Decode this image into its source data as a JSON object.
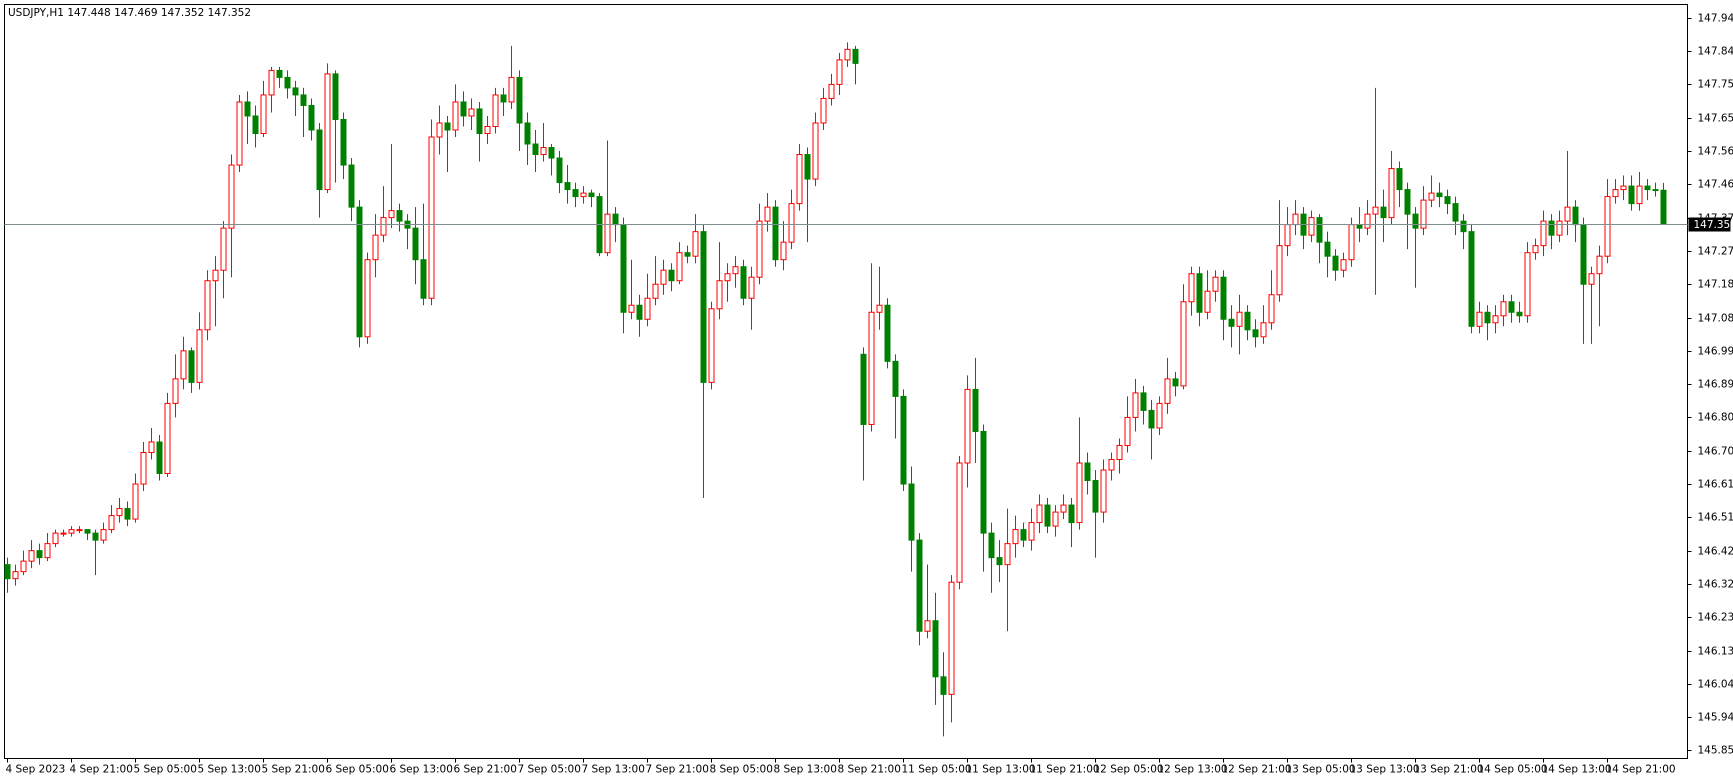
{
  "chart_data": {
    "type": "candlestick",
    "symbol": "USDJPY,H1",
    "up_color": "#ff0000",
    "down_color": "#008000",
    "background": "#ffffff",
    "price_line_color": "#7f8f8f",
    "grid": false,
    "ylim": [
      145.827,
      147.978
    ],
    "yticks": [
      {
        "value": 147.94,
        "label": "147.940"
      },
      147.845,
      {
        "value": 147.75,
        "label": "147.750"
      },
      147.655,
      {
        "value": 147.56,
        "label": "147.560"
      },
      147.465,
      {
        "value": 147.37,
        "label": "147.370"
      },
      147.275,
      {
        "value": 147.18,
        "label": "147.180"
      },
      147.085,
      {
        "value": 146.99,
        "label": "146.990"
      },
      146.895,
      {
        "value": 146.8,
        "label": "146.800"
      },
      146.705,
      {
        "value": 146.61,
        "label": "146.610"
      },
      146.515,
      {
        "value": 146.42,
        "label": "146.420"
      },
      146.325,
      {
        "value": 146.23,
        "label": "146.230"
      },
      146.135,
      {
        "value": 146.04,
        "label": "146.040"
      },
      145.945,
      {
        "value": 145.85,
        "label": "145.850"
      }
    ],
    "categories": [
      "4 Sep 2023",
      null,
      null,
      null,
      null,
      null,
      null,
      null,
      "4 Sep 21:00",
      null,
      null,
      null,
      null,
      null,
      null,
      null,
      "5 Sep 05:00",
      null,
      null,
      null,
      null,
      null,
      null,
      null,
      "5 Sep 13:00",
      null,
      null,
      null,
      null,
      null,
      null,
      null,
      "5 Sep 21:00",
      null,
      null,
      null,
      null,
      null,
      null,
      null,
      "6 Sep 05:00",
      null,
      null,
      null,
      null,
      null,
      null,
      null,
      "6 Sep 13:00",
      null,
      null,
      null,
      null,
      null,
      null,
      null,
      "6 Sep 21:00",
      null,
      null,
      null,
      null,
      null,
      null,
      null,
      "7 Sep 05:00",
      null,
      null,
      null,
      null,
      null,
      null,
      null,
      "7 Sep 13:00",
      null,
      null,
      null,
      null,
      null,
      null,
      null,
      "7 Sep 21:00",
      null,
      null,
      null,
      null,
      null,
      null,
      null,
      "8 Sep 05:00",
      null,
      null,
      null,
      null,
      null,
      null,
      null,
      "8 Sep 13:00",
      null,
      null,
      null,
      null,
      null,
      null,
      null,
      "8 Sep 21:00",
      null,
      null,
      null,
      null,
      null,
      null,
      null,
      "11 Sep 05:00",
      null,
      null,
      null,
      null,
      null,
      null,
      null,
      "11 Sep 13:00",
      null,
      null,
      null,
      null,
      null,
      null,
      null,
      "11 Sep 21:00",
      null,
      null,
      null,
      null,
      null,
      null,
      null,
      "12 Sep 05:00",
      null,
      null,
      null,
      null,
      null,
      null,
      null,
      "12 Sep 13:00",
      null,
      null,
      null,
      null,
      null,
      null,
      null,
      "12 Sep 21:00",
      null,
      null,
      null,
      null,
      null,
      null,
      null,
      "13 Sep 05:00",
      null,
      null,
      null,
      null,
      null,
      null,
      null,
      "13 Sep 13:00",
      null,
      null,
      null,
      null,
      null,
      null,
      null,
      "13 Sep 21:00",
      null,
      null,
      null,
      null,
      null,
      null,
      null,
      "14 Sep 05:00",
      null,
      null,
      null,
      null,
      null,
      null,
      null,
      "14 Sep 13:00",
      null,
      null,
      null,
      null,
      null,
      null,
      null,
      "14 Sep 21:00",
      null,
      null,
      null,
      null,
      null,
      null,
      null
    ],
    "open": [
      146.38,
      146.34,
      146.36,
      146.39,
      146.42,
      146.4,
      146.44,
      146.47,
      146.47,
      146.48,
      146.48,
      146.47,
      146.45,
      146.48,
      146.52,
      146.54,
      146.51,
      146.61,
      146.7,
      146.73,
      146.64,
      146.84,
      146.91,
      146.99,
      146.9,
      147.05,
      147.19,
      147.22,
      147.34,
      147.52,
      147.7,
      147.66,
      147.61,
      147.72,
      147.79,
      147.77,
      147.74,
      147.72,
      147.69,
      147.62,
      147.45,
      147.78,
      147.65,
      147.52,
      147.4,
      147.03,
      147.25,
      147.32,
      147.37,
      147.39,
      147.36,
      147.34,
      147.25,
      147.14,
      147.6,
      147.64,
      147.62,
      147.7,
      147.66,
      147.68,
      147.61,
      147.63,
      147.72,
      147.7,
      147.77,
      147.64,
      147.58,
      147.55,
      147.57,
      147.54,
      147.47,
      147.45,
      147.43,
      147.44,
      147.43,
      147.27,
      147.38,
      147.35,
      147.1,
      147.12,
      147.08,
      147.14,
      147.18,
      147.22,
      147.19,
      147.27,
      147.26,
      147.33,
      146.9,
      147.11,
      147.19,
      147.21,
      147.23,
      147.14,
      147.2,
      147.36,
      147.4,
      147.25,
      147.3,
      147.41,
      147.55,
      147.48,
      147.64,
      147.71,
      147.75,
      147.82,
      147.85,
      146.98,
      146.78,
      147.1,
      147.12,
      146.96,
      146.86,
      146.61,
      146.45,
      146.19,
      146.22,
      146.06,
      146.01,
      146.33,
      146.67,
      146.88,
      146.76,
      146.47,
      146.4,
      146.38,
      146.44,
      146.48,
      146.45,
      146.5,
      146.55,
      146.49,
      146.53,
      146.55,
      146.5,
      146.67,
      146.62,
      146.53,
      146.65,
      146.68,
      146.72,
      146.8,
      146.87,
      146.82,
      146.77,
      146.84,
      146.91,
      146.89,
      147.13,
      147.21,
      147.1,
      147.16,
      147.2,
      147.08,
      147.06,
      147.1,
      147.05,
      147.03,
      147.07,
      147.15,
      147.29,
      147.35,
      147.38,
      147.32,
      147.37,
      147.3,
      147.26,
      147.22,
      147.25,
      147.35,
      147.34,
      147.38,
      147.4,
      147.37,
      147.51,
      147.45,
      147.38,
      147.34,
      147.42,
      147.44,
      147.43,
      147.41,
      147.36,
      147.33,
      147.06,
      147.1,
      147.07,
      147.09,
      147.13,
      147.1,
      147.09,
      147.27,
      147.29,
      147.36,
      147.32,
      147.36,
      147.4,
      147.35,
      147.18,
      147.21,
      147.26,
      147.43,
      147.45,
      147.46,
      147.41,
      147.46,
      147.45,
      147.448
    ],
    "high": [
      146.4,
      146.38,
      146.42,
      146.45,
      146.44,
      146.47,
      146.48,
      146.48,
      146.49,
      146.49,
      146.48,
      146.48,
      146.5,
      146.55,
      146.57,
      146.56,
      146.64,
      146.73,
      146.77,
      146.75,
      146.87,
      146.98,
      147.03,
      147.0,
      147.1,
      147.22,
      147.26,
      147.36,
      147.55,
      147.72,
      147.73,
      147.69,
      147.76,
      147.8,
      147.8,
      147.79,
      147.76,
      147.74,
      147.71,
      147.64,
      147.81,
      147.79,
      147.67,
      147.54,
      147.42,
      147.27,
      147.38,
      147.46,
      147.58,
      147.41,
      147.38,
      147.4,
      147.41,
      147.65,
      147.69,
      147.66,
      147.75,
      147.73,
      147.71,
      147.7,
      147.66,
      147.74,
      147.74,
      147.86,
      147.79,
      147.67,
      147.62,
      147.64,
      147.58,
      147.56,
      147.52,
      147.47,
      147.46,
      147.45,
      147.44,
      147.59,
      147.4,
      147.37,
      147.25,
      147.15,
      147.21,
      147.26,
      147.25,
      147.24,
      147.3,
      147.29,
      147.38,
      147.35,
      147.13,
      147.3,
      147.24,
      147.26,
      147.25,
      147.23,
      147.41,
      147.44,
      147.42,
      147.36,
      147.45,
      147.58,
      147.57,
      147.67,
      147.74,
      147.78,
      147.84,
      147.87,
      147.86,
      147.0,
      147.24,
      147.23,
      147.14,
      146.98,
      146.88,
      146.66,
      146.47,
      146.38,
      146.3,
      146.13,
      146.35,
      146.69,
      146.92,
      146.97,
      146.78,
      146.5,
      146.45,
      146.54,
      146.52,
      146.5,
      146.54,
      146.58,
      146.57,
      146.55,
      146.58,
      146.57,
      146.8,
      146.7,
      146.65,
      146.68,
      146.7,
      146.74,
      146.86,
      146.91,
      146.89,
      146.85,
      146.86,
      146.97,
      146.93,
      147.18,
      147.23,
      147.23,
      147.22,
      147.22,
      147.22,
      147.12,
      147.15,
      147.12,
      147.08,
      147.12,
      147.22,
      147.42,
      147.4,
      147.42,
      147.4,
      147.39,
      147.38,
      147.33,
      147.28,
      147.27,
      147.37,
      147.4,
      147.42,
      147.74,
      147.45,
      147.56,
      147.53,
      147.47,
      147.4,
      147.46,
      147.49,
      147.47,
      147.45,
      147.43,
      147.38,
      147.35,
      147.13,
      147.12,
      147.12,
      147.15,
      147.15,
      147.13,
      147.3,
      147.31,
      147.39,
      147.38,
      147.39,
      147.56,
      147.42,
      147.37,
      147.23,
      147.29,
      147.48,
      147.48,
      147.49,
      147.49,
      147.5,
      147.48,
      147.47,
      147.469
    ],
    "low": [
      146.3,
      146.32,
      146.35,
      146.37,
      146.38,
      146.39,
      146.43,
      146.46,
      146.46,
      146.47,
      146.45,
      146.35,
      146.44,
      146.47,
      146.5,
      146.49,
      146.5,
      146.59,
      146.68,
      146.62,
      146.63,
      146.8,
      146.88,
      146.87,
      146.88,
      147.02,
      147.06,
      147.14,
      147.2,
      147.5,
      147.58,
      147.57,
      147.6,
      147.67,
      147.74,
      147.71,
      147.66,
      147.6,
      147.59,
      147.37,
      147.44,
      147.47,
      147.48,
      147.36,
      147.0,
      147.01,
      147.2,
      147.3,
      147.34,
      147.33,
      147.28,
      147.18,
      147.12,
      147.12,
      147.55,
      147.5,
      147.6,
      147.63,
      147.62,
      147.53,
      147.58,
      147.61,
      147.66,
      147.68,
      147.56,
      147.52,
      147.5,
      147.53,
      147.49,
      147.44,
      147.41,
      147.4,
      147.41,
      147.4,
      147.26,
      147.26,
      147.3,
      147.04,
      147.08,
      147.03,
      147.06,
      147.12,
      147.15,
      147.16,
      147.18,
      147.24,
      147.24,
      146.57,
      146.88,
      147.08,
      147.13,
      147.17,
      147.12,
      147.05,
      147.18,
      147.33,
      147.23,
      147.22,
      147.28,
      147.39,
      147.3,
      147.46,
      147.62,
      147.69,
      147.72,
      147.8,
      147.75,
      146.62,
      146.76,
      147.05,
      146.94,
      146.74,
      146.59,
      146.36,
      146.15,
      146.17,
      145.98,
      145.89,
      145.93,
      146.31,
      146.6,
      146.67,
      146.36,
      146.3,
      146.33,
      146.19,
      146.4,
      146.43,
      146.42,
      146.47,
      146.47,
      146.46,
      146.51,
      146.43,
      146.48,
      146.58,
      146.4,
      146.5,
      146.62,
      146.64,
      146.7,
      146.76,
      146.78,
      146.68,
      146.75,
      146.81,
      146.86,
      146.88,
      147.09,
      147.06,
      147.08,
      147.13,
      147.02,
      147.0,
      146.98,
      147.02,
      147.0,
      147.01,
      147.05,
      147.13,
      147.26,
      147.32,
      147.28,
      147.3,
      147.24,
      147.2,
      147.19,
      147.2,
      147.23,
      147.3,
      147.32,
      147.15,
      147.3,
      147.35,
      147.4,
      147.28,
      147.17,
      147.32,
      147.4,
      147.4,
      147.38,
      147.32,
      147.28,
      147.04,
      147.04,
      147.02,
      147.04,
      147.06,
      147.07,
      147.07,
      147.07,
      147.25,
      147.26,
      147.28,
      147.3,
      147.32,
      147.3,
      147.01,
      147.01,
      147.06,
      147.24,
      147.41,
      147.42,
      147.39,
      147.39,
      147.42,
      147.43,
      147.352
    ],
    "close": [
      146.34,
      146.36,
      146.39,
      146.42,
      146.4,
      146.44,
      146.47,
      146.47,
      146.48,
      146.48,
      146.47,
      146.45,
      146.48,
      146.52,
      146.54,
      146.51,
      146.61,
      146.7,
      146.73,
      146.64,
      146.84,
      146.91,
      146.99,
      146.9,
      147.05,
      147.19,
      147.22,
      147.34,
      147.52,
      147.7,
      147.66,
      147.61,
      147.72,
      147.79,
      147.77,
      147.74,
      147.72,
      147.69,
      147.62,
      147.45,
      147.78,
      147.65,
      147.52,
      147.4,
      147.03,
      147.25,
      147.32,
      147.37,
      147.39,
      147.36,
      147.34,
      147.25,
      147.14,
      147.6,
      147.64,
      147.62,
      147.7,
      147.66,
      147.68,
      147.61,
      147.63,
      147.72,
      147.7,
      147.77,
      147.64,
      147.58,
      147.55,
      147.57,
      147.54,
      147.47,
      147.45,
      147.43,
      147.44,
      147.43,
      147.27,
      147.38,
      147.35,
      147.1,
      147.12,
      147.08,
      147.14,
      147.18,
      147.22,
      147.19,
      147.27,
      147.26,
      147.33,
      146.9,
      147.11,
      147.19,
      147.21,
      147.23,
      147.14,
      147.2,
      147.36,
      147.4,
      147.25,
      147.3,
      147.41,
      147.55,
      147.48,
      147.64,
      147.71,
      147.75,
      147.82,
      147.85,
      147.81,
      146.78,
      147.1,
      147.12,
      146.96,
      146.86,
      146.61,
      146.45,
      146.19,
      146.22,
      146.06,
      146.01,
      146.33,
      146.67,
      146.88,
      146.76,
      146.47,
      146.4,
      146.38,
      146.44,
      146.48,
      146.45,
      146.5,
      146.55,
      146.49,
      146.53,
      146.55,
      146.5,
      146.67,
      146.62,
      146.53,
      146.65,
      146.68,
      146.72,
      146.8,
      146.87,
      146.82,
      146.77,
      146.84,
      146.91,
      146.89,
      147.13,
      147.21,
      147.1,
      147.16,
      147.2,
      147.08,
      147.06,
      147.1,
      147.05,
      147.03,
      147.07,
      147.15,
      147.29,
      147.35,
      147.38,
      147.32,
      147.37,
      147.3,
      147.26,
      147.22,
      147.25,
      147.35,
      147.34,
      147.38,
      147.4,
      147.37,
      147.51,
      147.45,
      147.38,
      147.34,
      147.42,
      147.44,
      147.43,
      147.41,
      147.36,
      147.33,
      147.06,
      147.1,
      147.07,
      147.09,
      147.13,
      147.1,
      147.09,
      147.27,
      147.29,
      147.36,
      147.32,
      147.36,
      147.4,
      147.35,
      147.18,
      147.21,
      147.26,
      147.43,
      147.45,
      147.46,
      147.41,
      147.46,
      147.45,
      147.448,
      147.352
    ]
  }
}
